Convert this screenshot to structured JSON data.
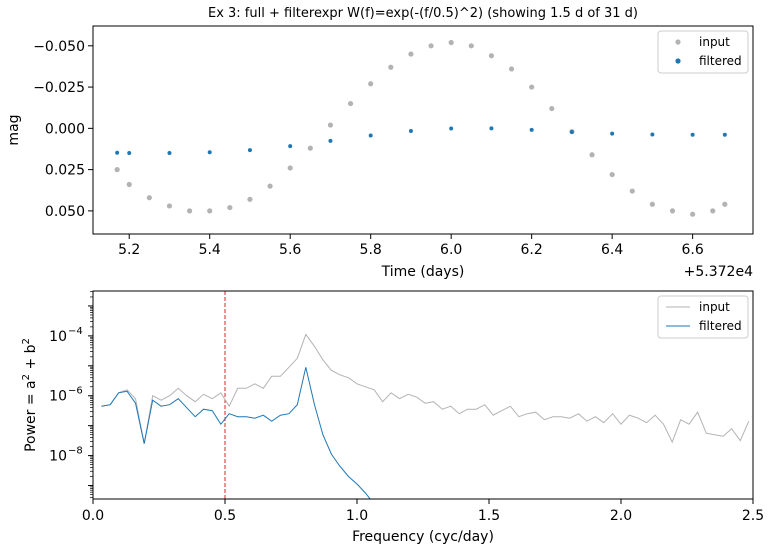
{
  "title": "Ex 3: full + filterexpr W(f)=exp(-(f/0.5)^2)  (showing 1.5 d of 31 d)",
  "chart_data": [
    {
      "type": "scatter",
      "xlabel": "Time (days)",
      "ylabel": "mag",
      "offset_text": "+5.372e4",
      "xlim": [
        5.11,
        6.75
      ],
      "ylim": [
        0.064,
        -0.062
      ],
      "y_inverted": true,
      "xticks": [
        5.2,
        5.4,
        5.6,
        5.8,
        6.0,
        6.2,
        6.4,
        6.6
      ],
      "xtick_labels": [
        "5.2",
        "5.4",
        "5.6",
        "5.8",
        "6.0",
        "6.2",
        "6.4",
        "6.6"
      ],
      "yticks": [
        -0.05,
        -0.025,
        0.0,
        0.025,
        0.05
      ],
      "ytick_labels": [
        "−0.050",
        "−0.025",
        "0.000",
        "0.025",
        "0.050"
      ],
      "legend": {
        "position": "upper right",
        "entries": [
          "input",
          "filtered"
        ]
      },
      "series": [
        {
          "name": "input",
          "color": "#b3b3b3",
          "marker": "point",
          "x": [
            5.17,
            5.2,
            5.25,
            5.3,
            5.35,
            5.4,
            5.45,
            5.5,
            5.55,
            5.6,
            5.65,
            5.7,
            5.75,
            5.8,
            5.85,
            5.9,
            5.95,
            6.0,
            6.05,
            6.1,
            6.15,
            6.2,
            6.25,
            6.3,
            6.35,
            6.4,
            6.45,
            6.5,
            6.55,
            6.6,
            6.65,
            6.68
          ],
          "y": [
            0.025,
            0.034,
            0.042,
            0.047,
            0.05,
            0.05,
            0.048,
            0.043,
            0.035,
            0.024,
            0.012,
            -0.002,
            -0.015,
            -0.027,
            -0.037,
            -0.045,
            -0.05,
            -0.052,
            -0.05,
            -0.044,
            -0.036,
            -0.025,
            -0.012,
            0.002,
            0.016,
            0.028,
            0.038,
            0.046,
            0.05,
            0.052,
            0.05,
            0.046
          ]
        },
        {
          "name": "filtered",
          "color": "#1f77b4",
          "marker": "point",
          "x": [
            5.17,
            5.2,
            5.3,
            5.4,
            5.5,
            5.6,
            5.7,
            5.8,
            5.9,
            6.0,
            6.1,
            6.2,
            6.3,
            6.4,
            6.5,
            6.6,
            6.68
          ],
          "y": [
            0.0148,
            0.0149,
            0.0149,
            0.0145,
            0.0132,
            0.0108,
            0.0076,
            0.0043,
            0.0016,
            0.0001,
            0.0,
            0.0009,
            0.0022,
            0.0032,
            0.0037,
            0.0039,
            0.0039
          ]
        }
      ]
    },
    {
      "type": "line",
      "xlabel": "Frequency (cyc/day)",
      "ylabel_base": "Power = a",
      "ylabel_mid": " + b",
      "ylabel_sup": "2",
      "xlim": [
        0,
        2.5
      ],
      "ylim_log10": [
        -9.45,
        -2.5
      ],
      "yscale": "log",
      "xticks": [
        0.0,
        0.5,
        1.0,
        1.5,
        2.0,
        2.5
      ],
      "xtick_labels": [
        "0.0",
        "0.5",
        "1.0",
        "1.5",
        "2.0",
        "2.5"
      ],
      "ytick_exponents": [
        -8,
        -6,
        -4
      ],
      "ytick_base": "10",
      "ytick_sup": [
        "−8",
        "−6",
        "−4"
      ],
      "vline": {
        "x": 0.5,
        "color": "#d62728",
        "style": "dashed"
      },
      "legend": {
        "position": "upper right",
        "entries": [
          "input",
          "filtered"
        ]
      },
      "series": [
        {
          "name": "input",
          "color": "#b3b3b3",
          "x": [
            0.032,
            0.065,
            0.097,
            0.129,
            0.161,
            0.194,
            0.226,
            0.258,
            0.29,
            0.323,
            0.355,
            0.387,
            0.419,
            0.452,
            0.484,
            0.516,
            0.548,
            0.581,
            0.613,
            0.645,
            0.677,
            0.71,
            0.742,
            0.774,
            0.806,
            0.839,
            0.871,
            0.903,
            0.935,
            0.968,
            1.0,
            1.032,
            1.065,
            1.097,
            1.129,
            1.161,
            1.194,
            1.226,
            1.258,
            1.29,
            1.323,
            1.355,
            1.387,
            1.419,
            1.452,
            1.484,
            1.516,
            1.548,
            1.581,
            1.613,
            1.645,
            1.677,
            1.71,
            1.742,
            1.774,
            1.806,
            1.839,
            1.871,
            1.903,
            1.935,
            1.968,
            2.0,
            2.032,
            2.065,
            2.097,
            2.129,
            2.161,
            2.194,
            2.226,
            2.258,
            2.29,
            2.323,
            2.355,
            2.387,
            2.419,
            2.452,
            2.484
          ],
          "y": [
            -6.35,
            -6.3,
            -5.9,
            -5.8,
            -6.1,
            -7.6,
            -6.0,
            -6.15,
            -6.0,
            -5.75,
            -6.0,
            -6.2,
            -5.95,
            -6.1,
            -5.9,
            -6.35,
            -5.75,
            -5.75,
            -5.6,
            -5.75,
            -5.35,
            -5.35,
            -5.05,
            -4.75,
            -3.95,
            -4.35,
            -4.8,
            -5.15,
            -5.3,
            -5.4,
            -5.6,
            -5.7,
            -5.8,
            -6.2,
            -5.9,
            -6.1,
            -5.95,
            -6.05,
            -6.25,
            -6.2,
            -6.45,
            -6.35,
            -6.6,
            -6.45,
            -6.45,
            -6.3,
            -6.65,
            -6.5,
            -6.35,
            -6.7,
            -6.6,
            -6.55,
            -6.8,
            -6.7,
            -6.7,
            -6.75,
            -6.6,
            -6.85,
            -6.7,
            -6.9,
            -6.6,
            -6.95,
            -6.65,
            -6.75,
            -6.9,
            -6.65,
            -6.95,
            -7.55,
            -6.8,
            -6.95,
            -6.55,
            -7.25,
            -7.3,
            -7.35,
            -7.1,
            -7.5,
            -6.85
          ]
        },
        {
          "name": "filtered",
          "color": "#1f77b4",
          "x": [
            0.032,
            0.065,
            0.097,
            0.129,
            0.161,
            0.194,
            0.226,
            0.258,
            0.29,
            0.323,
            0.355,
            0.387,
            0.419,
            0.452,
            0.484,
            0.516,
            0.548,
            0.581,
            0.613,
            0.645,
            0.677,
            0.71,
            0.742,
            0.774,
            0.806,
            0.839,
            0.871,
            0.903,
            0.935,
            0.968,
            1.0,
            1.032,
            1.05
          ],
          "y": [
            -6.35,
            -6.3,
            -5.9,
            -5.85,
            -6.25,
            -7.6,
            -6.15,
            -6.35,
            -6.3,
            -6.1,
            -6.4,
            -6.7,
            -6.45,
            -6.5,
            -6.95,
            -6.6,
            -6.7,
            -6.7,
            -6.75,
            -6.65,
            -6.85,
            -6.65,
            -6.6,
            -6.3,
            -5.05,
            -6.3,
            -7.3,
            -7.95,
            -8.35,
            -8.7,
            -8.95,
            -9.25,
            -9.45
          ]
        }
      ]
    }
  ]
}
